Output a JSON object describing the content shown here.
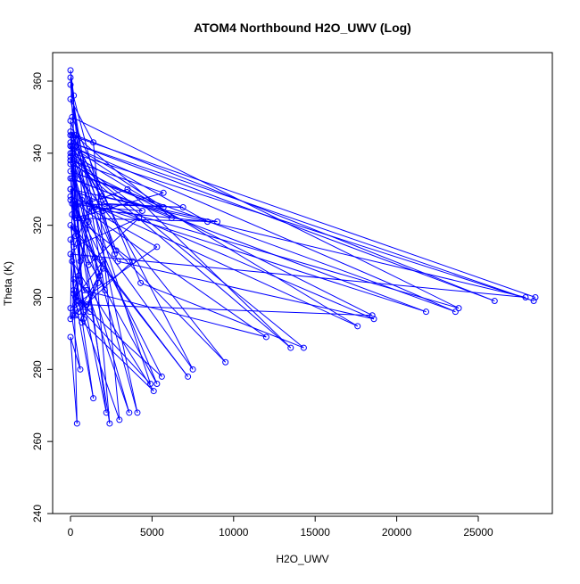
{
  "chart_data": {
    "type": "line",
    "title": "ATOM4 Northbound H2O_UWV (Log)",
    "xlabel": "H2O_UWV",
    "ylabel": "Theta (K)",
    "xlim": [
      0,
      30000
    ],
    "ylim": [
      240,
      370
    ],
    "x_ticks": [
      0,
      5000,
      10000,
      15000,
      20000,
      25000
    ],
    "y_ticks": [
      240,
      260,
      280,
      300,
      320,
      340,
      360
    ],
    "grid": false,
    "legend": "none",
    "colors": {
      "series": "#0000ff",
      "frame": "#000000",
      "background": "#ffffff"
    },
    "series": [
      {
        "values": [
          [
            28500,
            300
          ],
          [
            0,
            345
          ],
          [
            250,
            333
          ],
          [
            600,
            310
          ],
          [
            150,
            295
          ],
          [
            300,
            345
          ],
          [
            26000,
            299
          ],
          [
            0,
            343
          ],
          [
            28400,
            299
          ],
          [
            100,
            340
          ],
          [
            300,
            322
          ],
          [
            5700,
            329
          ],
          [
            0,
            338
          ],
          [
            500,
            322
          ],
          [
            9000,
            321
          ],
          [
            0,
            330
          ],
          [
            800,
            302
          ],
          [
            12000,
            289
          ],
          [
            0,
            327
          ],
          [
            300,
            319
          ],
          [
            7200,
            278
          ],
          [
            0,
            320
          ],
          [
            500,
            306
          ],
          [
            2200,
            268
          ],
          [
            0,
            342
          ],
          [
            5700,
            325
          ],
          [
            0,
            335
          ],
          [
            23600,
            296
          ],
          [
            0,
            342
          ],
          [
            1100,
            326
          ],
          [
            21800,
            296
          ],
          [
            0,
            333
          ],
          [
            800,
            298
          ],
          [
            18500,
            295
          ],
          [
            0,
            337
          ],
          [
            700,
            327
          ],
          [
            17600,
            292
          ],
          [
            0,
            340
          ],
          [
            300,
            317
          ],
          [
            5300,
            276
          ],
          [
            100,
            333
          ],
          [
            6200,
            322
          ],
          [
            0,
            346
          ],
          [
            2400,
            325
          ],
          [
            23800,
            297
          ],
          [
            100,
            350
          ],
          [
            4300,
            304
          ],
          [
            14300,
            286
          ],
          [
            200,
            338
          ],
          [
            2900,
            310
          ],
          [
            18600,
            294
          ],
          [
            0,
            330
          ],
          [
            1500,
            311
          ],
          [
            2400,
            265
          ],
          [
            300,
            325
          ],
          [
            3500,
            330
          ],
          [
            13500,
            286
          ],
          [
            0,
            338
          ],
          [
            800,
            322
          ],
          [
            7500,
            280
          ],
          [
            100,
            345
          ],
          [
            2800,
            313
          ],
          [
            9500,
            282
          ],
          [
            200,
            335
          ],
          [
            1800,
            306
          ],
          [
            4100,
            268
          ],
          [
            0,
            355
          ],
          [
            1400,
            343
          ],
          [
            3000,
            266
          ],
          [
            200,
            302
          ],
          [
            1400,
            272
          ],
          [
            0,
            316
          ],
          [
            500,
            299
          ],
          [
            5600,
            278
          ],
          [
            0,
            328
          ],
          [
            2000,
            324
          ],
          [
            8400,
            321
          ],
          [
            100,
            342
          ],
          [
            1900,
            328
          ],
          [
            27900,
            300
          ],
          [
            0,
            312
          ],
          [
            300,
            295
          ],
          [
            5100,
            274
          ],
          [
            100,
            310
          ],
          [
            800,
            296
          ],
          [
            4900,
            276
          ],
          [
            200,
            341
          ],
          [
            2100,
            326
          ],
          [
            6900,
            325
          ],
          [
            100,
            326
          ],
          [
            1500,
            325
          ],
          [
            4400,
            324
          ],
          [
            0,
            339
          ],
          [
            1400,
            324
          ],
          [
            5300,
            314
          ],
          [
            0,
            297
          ],
          [
            600,
            280
          ],
          [
            0,
            289
          ],
          [
            400,
            265
          ],
          [
            200,
            305
          ],
          [
            1000,
            302
          ],
          [
            3600,
            268
          ],
          [
            100,
            323
          ],
          [
            3800,
            310
          ],
          [
            0,
            294
          ],
          [
            200,
            356
          ],
          [
            0,
            363
          ],
          [
            1100,
            309
          ],
          [
            4200,
            322
          ],
          [
            200,
            314
          ],
          [
            1200,
            325
          ],
          [
            300,
            298
          ],
          [
            500,
            296
          ],
          [
            2000,
            308
          ],
          [
            700,
            293
          ],
          [
            2000,
            310
          ],
          [
            300,
            300
          ],
          [
            1000,
            298
          ],
          [
            1700,
            304
          ],
          [
            300,
            326
          ],
          [
            2100,
            302
          ],
          [
            0,
            359
          ],
          [
            2700,
            312
          ],
          [
            0,
            349
          ],
          [
            800,
            294
          ],
          [
            0,
            361
          ],
          [
            1100,
            321
          ],
          [
            200,
            301
          ],
          [
            1200,
            296
          ]
        ]
      }
    ]
  }
}
